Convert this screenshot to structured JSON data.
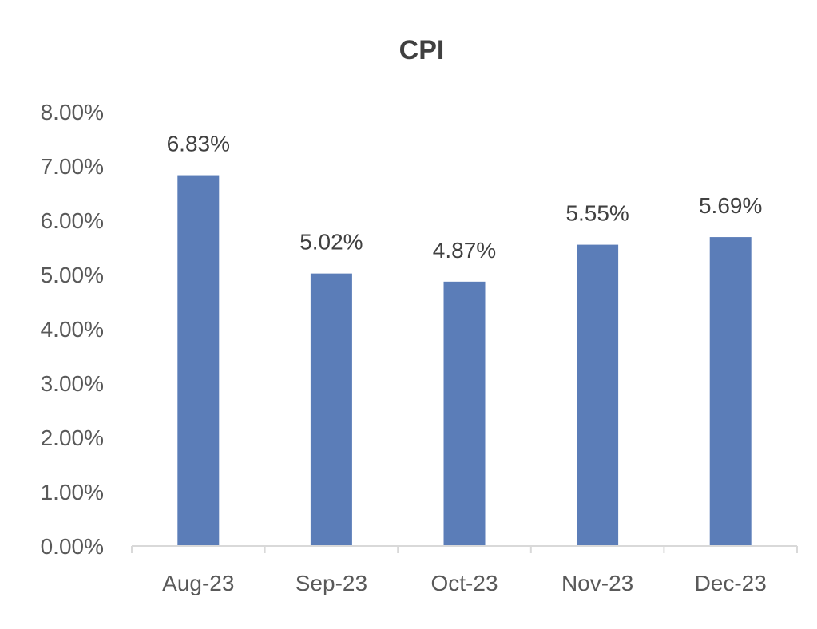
{
  "chart_data": {
    "type": "bar",
    "title": "CPI",
    "xlabel": "",
    "ylabel": "",
    "categories": [
      "Aug-23",
      "Sep-23",
      "Oct-23",
      "Nov-23",
      "Dec-23"
    ],
    "values": [
      6.83,
      5.02,
      4.87,
      5.55,
      5.69
    ],
    "data_labels": [
      "6.83%",
      "5.02%",
      "4.87%",
      "5.55%",
      "5.69%"
    ],
    "ylim": [
      0,
      8
    ],
    "y_ticks": [
      0,
      1,
      2,
      3,
      4,
      5,
      6,
      7,
      8
    ],
    "y_tick_labels": [
      "0.00%",
      "1.00%",
      "2.00%",
      "3.00%",
      "4.00%",
      "5.00%",
      "6.00%",
      "7.00%",
      "8.00%"
    ],
    "grid": false,
    "legend": "none",
    "colors": {
      "bar": "#5B7DB8"
    }
  }
}
